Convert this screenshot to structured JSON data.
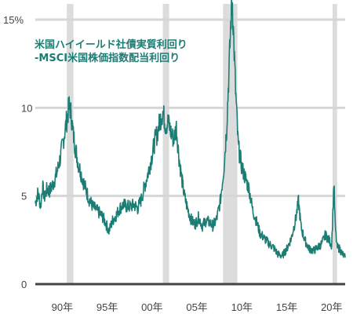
{
  "chart_data": {
    "type": "line",
    "title_lines": [
      "米国ハイイールド社債実質利回り",
      "-MSCI米国株価指数配当利回り"
    ],
    "xlabel": "",
    "ylabel": "",
    "xlim": [
      1987.0,
      2021.5
    ],
    "ylim": [
      0,
      15
    ],
    "x_ticks": [
      {
        "value": 1990,
        "label": "90年"
      },
      {
        "value": 1995,
        "label": "95年"
      },
      {
        "value": 2000,
        "label": "00年"
      },
      {
        "value": 2005,
        "label": "05年"
      },
      {
        "value": 2010,
        "label": "10年"
      },
      {
        "value": 2015,
        "label": "15年"
      },
      {
        "value": 2020,
        "label": "20年"
      }
    ],
    "y_ticks": [
      {
        "value": 0,
        "label": "0"
      },
      {
        "value": 5,
        "label": "5"
      },
      {
        "value": 10,
        "label": "10"
      },
      {
        "value": 15,
        "label": "15%"
      }
    ],
    "grid": "horizontal",
    "recession_bands": [
      {
        "start": 1990.5,
        "end": 1991.25
      },
      {
        "start": 2001.2,
        "end": 2001.9
      },
      {
        "start": 2007.9,
        "end": 2009.5
      },
      {
        "start": 2020.1,
        "end": 2020.6
      }
    ],
    "series": [
      {
        "x": [
          1987.0,
          1987.3,
          1987.6,
          1987.8,
          1988.0,
          1988.3,
          1988.6,
          1989.0,
          1989.4,
          1989.8,
          1990.2,
          1990.5,
          1990.8,
          1991.0,
          1991.2,
          1991.5,
          1991.8,
          1992.2,
          1992.6,
          1993.0,
          1993.4,
          1993.8,
          1994.2,
          1994.5,
          1994.8,
          1995.2,
          1995.6,
          1996.0,
          1996.4,
          1996.8,
          1997.2,
          1997.6,
          1998.0,
          1998.4,
          1998.8,
          1999.2,
          1999.6,
          2000.0,
          2000.3,
          2000.6,
          2000.9,
          2001.2,
          2001.5,
          2001.8,
          2002.1,
          2002.4,
          2002.7,
          2003.0,
          2003.3,
          2003.6,
          2004.0,
          2004.4,
          2004.8,
          2005.2,
          2005.6,
          2006.0,
          2006.4,
          2006.8,
          2007.2,
          2007.6,
          2008.0,
          2008.3,
          2008.6,
          2008.8,
          2008.95,
          2009.1,
          2009.3,
          2009.6,
          2010.0,
          2010.4,
          2010.8,
          2011.2,
          2011.6,
          2012.0,
          2012.5,
          2013.0,
          2013.5,
          2014.0,
          2014.5,
          2015.0,
          2015.5,
          2016.0,
          2016.3,
          2016.6,
          2017.0,
          2017.5,
          2018.0,
          2018.5,
          2018.9,
          2019.3,
          2019.7,
          2020.0,
          2020.25,
          2020.4,
          2020.6,
          2020.9,
          2021.2,
          2021.5
        ],
        "y": [
          4.6,
          5.2,
          4.4,
          5.6,
          4.9,
          5.4,
          5.3,
          5.7,
          6.3,
          7.2,
          8.4,
          9.3,
          10.2,
          9.6,
          8.6,
          7.6,
          6.8,
          6.1,
          5.4,
          4.8,
          4.4,
          4.2,
          4.0,
          3.8,
          3.5,
          3.0,
          3.6,
          3.9,
          4.3,
          4.5,
          4.4,
          4.4,
          4.5,
          4.3,
          4.8,
          5.6,
          6.4,
          7.3,
          8.1,
          8.6,
          9.3,
          9.8,
          9.0,
          9.2,
          8.6,
          8.2,
          8.9,
          7.2,
          6.0,
          5.0,
          4.2,
          3.6,
          3.4,
          3.8,
          3.3,
          3.6,
          3.5,
          3.3,
          3.7,
          4.7,
          6.6,
          8.8,
          12.5,
          15.2,
          16.0,
          13.8,
          11.0,
          7.8,
          6.6,
          6.0,
          5.4,
          4.2,
          3.6,
          2.9,
          2.6,
          2.3,
          2.1,
          1.7,
          1.6,
          2.0,
          2.6,
          3.7,
          4.7,
          3.2,
          2.5,
          2.0,
          1.9,
          2.1,
          2.3,
          2.8,
          2.5,
          2.2,
          5.8,
          3.2,
          2.1,
          2.0,
          1.7,
          1.5
        ]
      }
    ],
    "colors": {
      "line": "#1b7d74",
      "title": "#1b7d74",
      "recession_band": "#dcdcdc",
      "grid": "#d6d6d6",
      "axis": "#444444"
    }
  }
}
